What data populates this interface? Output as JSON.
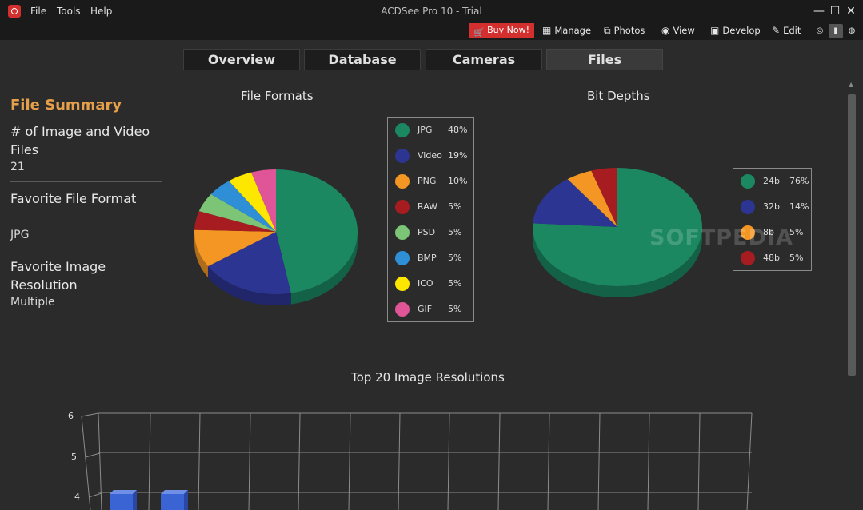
{
  "window": {
    "title": "ACDSee Pro 10 - Trial",
    "menu": [
      "File",
      "Tools",
      "Help"
    ],
    "minimize": "—",
    "maximize": "☐",
    "close": "✕"
  },
  "modes": {
    "buy_now": "Buy Now!",
    "manage": "Manage",
    "photos": "Photos",
    "view": "View",
    "develop": "Develop",
    "edit": "Edit"
  },
  "tabs": [
    {
      "label": "Overview",
      "active": false
    },
    {
      "label": "Database",
      "active": false
    },
    {
      "label": "Cameras",
      "active": false
    },
    {
      "label": "Files",
      "active": true
    }
  ],
  "summary": {
    "title": "File Summary",
    "count_label": "# of Image and Video Files",
    "count_value": "21",
    "fav_format_label": "Favorite File Format",
    "fav_format_value": "JPG",
    "fav_res_label": "Favorite Image Resolution",
    "fav_res_value": "Multiple"
  },
  "colors": {
    "jpg": "#1b8862",
    "video": "#2c3592",
    "png": "#f39624",
    "raw": "#a71c20",
    "psd": "#7cc576",
    "bmp": "#2f8fd6",
    "ico": "#fde600",
    "gif": "#e05597",
    "accent": "#e69f4a"
  },
  "watermark": "SOFTPEDIA",
  "chart_data": [
    {
      "type": "pie",
      "title": "File Formats",
      "categories": [
        "JPG",
        "Video",
        "PNG",
        "RAW",
        "PSD",
        "BMP",
        "ICO",
        "GIF"
      ],
      "values": [
        48,
        19,
        10,
        5,
        5,
        5,
        5,
        5
      ],
      "labels": [
        "48%",
        "19%",
        "10%",
        "5%",
        "5%",
        "5%",
        "5%",
        "5%"
      ],
      "colors": [
        "#1b8862",
        "#2c3592",
        "#f39624",
        "#a71c20",
        "#7cc576",
        "#2f8fd6",
        "#fde600",
        "#e05597"
      ],
      "legend": "right"
    },
    {
      "type": "pie",
      "title": "Bit Depths",
      "categories": [
        "24b",
        "32b",
        "8b",
        "48b"
      ],
      "values": [
        76,
        14,
        5,
        5
      ],
      "labels": [
        "76%",
        "14%",
        "5%",
        "5%"
      ],
      "colors": [
        "#1b8862",
        "#2c3592",
        "#f39624",
        "#a71c20"
      ],
      "legend": "right"
    },
    {
      "type": "bar",
      "title": "Top 20 Image Resolutions",
      "y_ticks": [
        "6",
        "5",
        "4"
      ],
      "ylim": [
        4,
        6
      ],
      "grid": true
    }
  ]
}
